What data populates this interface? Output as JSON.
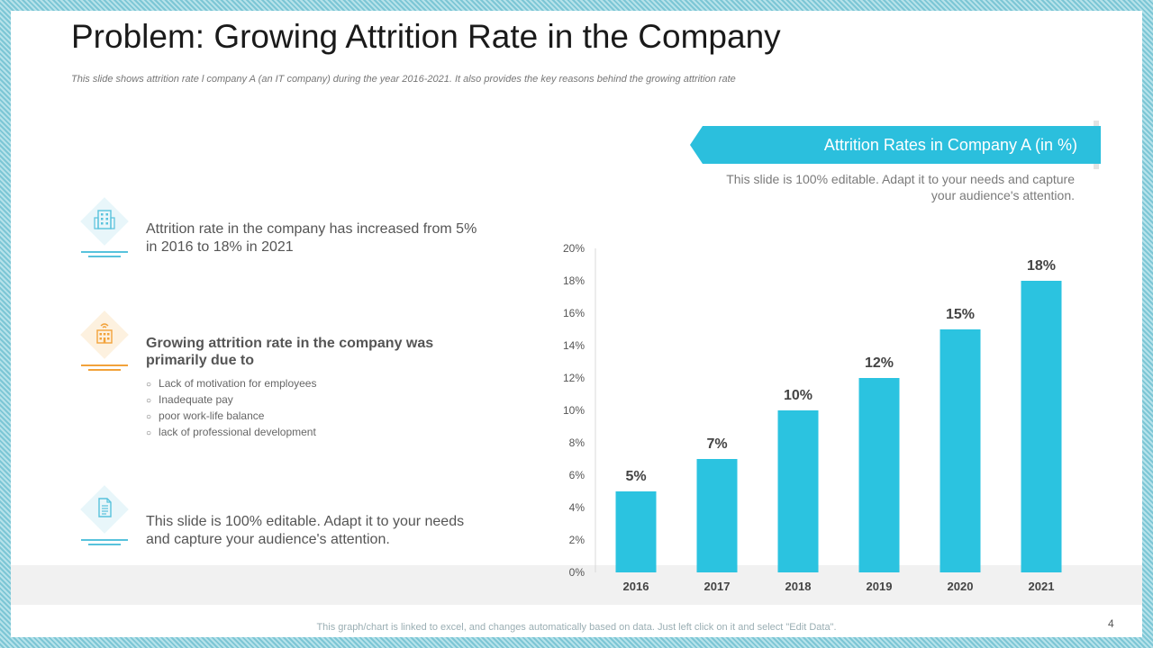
{
  "title": "Problem: Growing Attrition Rate in the Company",
  "subtitle": "This slide shows attrition rate l company A (an IT company) during the year 2016-2021. It also provides the key reasons behind the growing attrition rate",
  "banner": {
    "title": "Attrition Rates in Company A (in %)",
    "note": "This slide is 100% editable. Adapt it to your needs and capture your audience's attention."
  },
  "points": {
    "first": "Attrition rate in the company has increased from 5% in 2016 to 18% in 2021",
    "second_heading": "Growing attrition rate in the company was primarily due to",
    "reasons": [
      "Lack of motivation for employees",
      "Inadequate  pay",
      "poor work-life  balance",
      "lack of professional  development"
    ],
    "third": "This slide is 100% editable. Adapt it to your needs and capture your audience's attention."
  },
  "icons": {
    "first": "office-building-icon",
    "second": "hotel-building-icon",
    "third": "document-icon"
  },
  "colors": {
    "bar": "#2bc3e0",
    "banner": "#2bbfdd",
    "accent_orange": "#f2a23a",
    "accent_blue": "#58c2dc"
  },
  "chart_data": {
    "type": "bar",
    "title": "Attrition Rates in Company A (in %)",
    "categories": [
      "2016",
      "2017",
      "2018",
      "2019",
      "2020",
      "2021"
    ],
    "values": [
      5,
      7,
      10,
      12,
      15,
      18
    ],
    "data_labels": [
      "5%",
      "7%",
      "10%",
      "12%",
      "15%",
      "18%"
    ],
    "ylim": [
      0,
      20
    ],
    "yticks": [
      0,
      2,
      4,
      6,
      8,
      10,
      12,
      14,
      16,
      18,
      20
    ],
    "ytick_labels": [
      "0%",
      "2%",
      "4%",
      "6%",
      "8%",
      "10%",
      "12%",
      "14%",
      "16%",
      "18%",
      "20%"
    ],
    "xlabel": "",
    "ylabel": "",
    "grid": false
  },
  "page_number": "4",
  "footnote": "This graph/chart is linked to excel, and changes automatically based on data. Just left click on it and select \"Edit Data\"."
}
